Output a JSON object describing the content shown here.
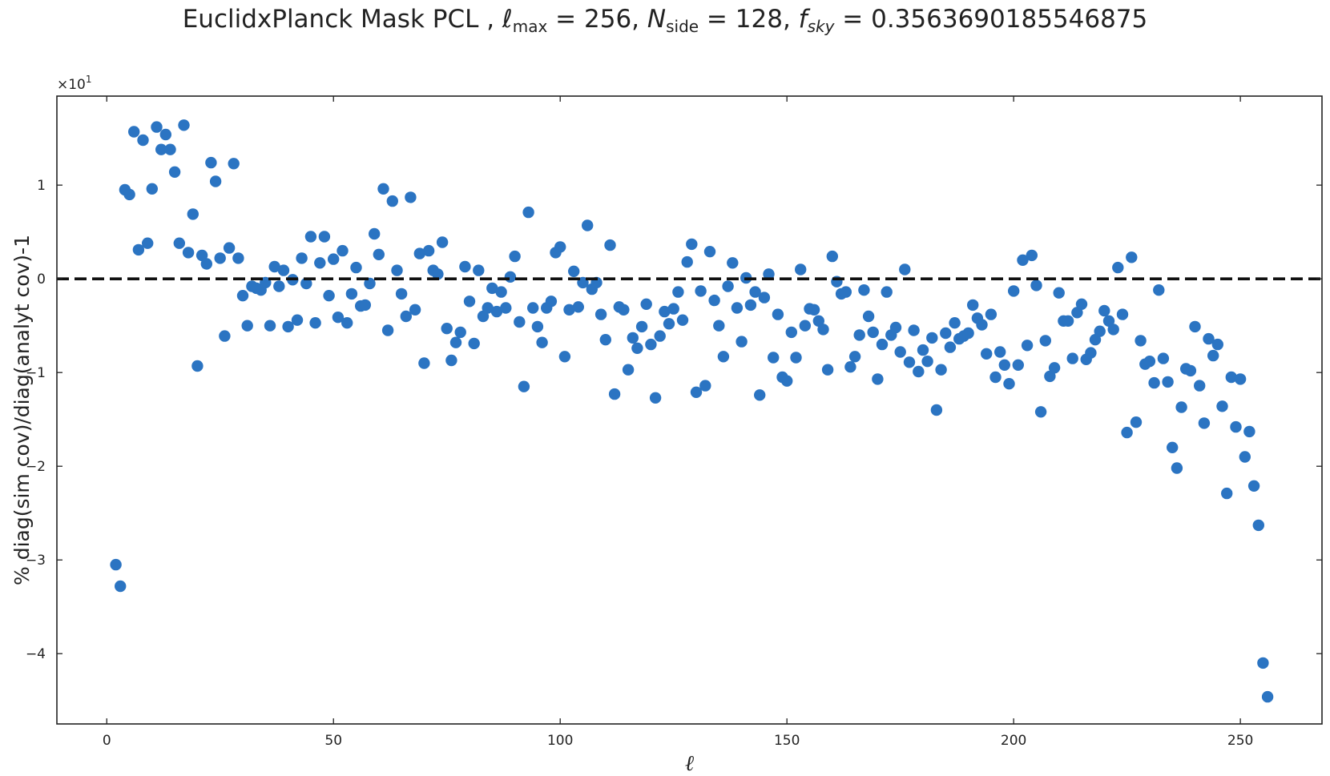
{
  "chart_data": {
    "type": "scatter",
    "title": {
      "mask": "EuclidxPlanck Mask PCL",
      "lmax": "256",
      "nside": "128",
      "fsky": "0.3563690185546875"
    },
    "xlabel": "ℓ",
    "ylabel": "% diag(sim cov)/diag(analyt cov)-1",
    "offset_text": "×10",
    "offset_exponent": "1",
    "xlim": [
      -11,
      268
    ],
    "ylim": [
      -4.75,
      1.95
    ],
    "x_ticks": [
      0,
      50,
      100,
      150,
      200,
      250
    ],
    "x_tick_labels": [
      "0",
      "50",
      "100",
      "150",
      "200",
      "250"
    ],
    "y_ticks": [
      1,
      0,
      -1,
      -2,
      -3,
      -4
    ],
    "y_tick_labels": [
      "1",
      "0",
      "−1",
      "−2",
      "−3",
      "−4"
    ],
    "reference_line": {
      "y": 0,
      "style": "dashed",
      "color": "#111111"
    },
    "marker_color": "#2b74c2",
    "grid": false,
    "points": [
      [
        2,
        -3.05
      ],
      [
        3,
        -3.28
      ],
      [
        4,
        0.95
      ],
      [
        5,
        0.9
      ],
      [
        6,
        1.57
      ],
      [
        7,
        0.31
      ],
      [
        8,
        1.48
      ],
      [
        9,
        0.38
      ],
      [
        10,
        0.96
      ],
      [
        11,
        1.62
      ],
      [
        12,
        1.38
      ],
      [
        13,
        1.54
      ],
      [
        14,
        1.38
      ],
      [
        15,
        1.14
      ],
      [
        16,
        0.38
      ],
      [
        17,
        1.64
      ],
      [
        18,
        0.28
      ],
      [
        19,
        0.69
      ],
      [
        20,
        -0.93
      ],
      [
        21,
        0.25
      ],
      [
        22,
        0.16
      ],
      [
        23,
        1.24
      ],
      [
        24,
        1.04
      ],
      [
        25,
        0.22
      ],
      [
        26,
        -0.61
      ],
      [
        27,
        0.33
      ],
      [
        28,
        1.23
      ],
      [
        29,
        0.22
      ],
      [
        30,
        -0.18
      ],
      [
        31,
        -0.5
      ],
      [
        32,
        -0.08
      ],
      [
        33,
        -0.1
      ],
      [
        34,
        -0.12
      ],
      [
        35,
        -0.04
      ],
      [
        36,
        -0.5
      ],
      [
        37,
        0.13
      ],
      [
        38,
        -0.08
      ],
      [
        39,
        0.09
      ],
      [
        40,
        -0.51
      ],
      [
        41,
        -0.01
      ],
      [
        42,
        -0.44
      ],
      [
        43,
        0.22
      ],
      [
        44,
        -0.05
      ],
      [
        45,
        0.45
      ],
      [
        46,
        -0.47
      ],
      [
        47,
        0.17
      ],
      [
        48,
        0.45
      ],
      [
        49,
        -0.18
      ],
      [
        50,
        0.21
      ],
      [
        51,
        -0.41
      ],
      [
        52,
        0.3
      ],
      [
        53,
        -0.47
      ],
      [
        54,
        -0.16
      ],
      [
        55,
        0.12
      ],
      [
        56,
        -0.29
      ],
      [
        57,
        -0.28
      ],
      [
        58,
        -0.05
      ],
      [
        59,
        0.48
      ],
      [
        60,
        0.26
      ],
      [
        61,
        0.96
      ],
      [
        62,
        -0.55
      ],
      [
        63,
        0.83
      ],
      [
        64,
        0.09
      ],
      [
        65,
        -0.16
      ],
      [
        66,
        -0.4
      ],
      [
        67,
        0.87
      ],
      [
        68,
        -0.33
      ],
      [
        69,
        0.27
      ],
      [
        70,
        -0.9
      ],
      [
        71,
        0.3
      ],
      [
        72,
        0.09
      ],
      [
        73,
        0.05
      ],
      [
        74,
        0.39
      ],
      [
        75,
        -0.53
      ],
      [
        76,
        -0.87
      ],
      [
        77,
        -0.68
      ],
      [
        78,
        -0.57
      ],
      [
        79,
        0.13
      ],
      [
        80,
        -0.24
      ],
      [
        81,
        -0.69
      ],
      [
        82,
        0.09
      ],
      [
        83,
        -0.4
      ],
      [
        84,
        -0.31
      ],
      [
        85,
        -0.1
      ],
      [
        86,
        -0.35
      ],
      [
        87,
        -0.14
      ],
      [
        88,
        -0.31
      ],
      [
        89,
        0.02
      ],
      [
        90,
        0.24
      ],
      [
        91,
        -0.46
      ],
      [
        92,
        -1.15
      ],
      [
        93,
        0.71
      ],
      [
        94,
        -0.31
      ],
      [
        95,
        -0.51
      ],
      [
        96,
        -0.68
      ],
      [
        97,
        -0.31
      ],
      [
        98,
        -0.24
      ],
      [
        99,
        0.28
      ],
      [
        100,
        0.34
      ],
      [
        101,
        -0.83
      ],
      [
        102,
        -0.33
      ],
      [
        103,
        0.08
      ],
      [
        104,
        -0.3
      ],
      [
        105,
        -0.04
      ],
      [
        106,
        0.57
      ],
      [
        107,
        -0.11
      ],
      [
        108,
        -0.04
      ],
      [
        109,
        -0.38
      ],
      [
        110,
        -0.65
      ],
      [
        111,
        0.36
      ],
      [
        112,
        -1.23
      ],
      [
        113,
        -0.3
      ],
      [
        114,
        -0.33
      ],
      [
        115,
        -0.97
      ],
      [
        116,
        -0.63
      ],
      [
        117,
        -0.74
      ],
      [
        118,
        -0.51
      ],
      [
        119,
        -0.27
      ],
      [
        120,
        -0.7
      ],
      [
        121,
        -1.27
      ],
      [
        122,
        -0.61
      ],
      [
        123,
        -0.35
      ],
      [
        124,
        -0.48
      ],
      [
        125,
        -0.32
      ],
      [
        126,
        -0.14
      ],
      [
        127,
        -0.44
      ],
      [
        128,
        0.18
      ],
      [
        129,
        0.37
      ],
      [
        130,
        -1.21
      ],
      [
        131,
        -0.13
      ],
      [
        132,
        -1.14
      ],
      [
        133,
        0.29
      ],
      [
        134,
        -0.23
      ],
      [
        135,
        -0.5
      ],
      [
        136,
        -0.83
      ],
      [
        137,
        -0.08
      ],
      [
        138,
        0.17
      ],
      [
        139,
        -0.31
      ],
      [
        140,
        -0.67
      ],
      [
        141,
        0.01
      ],
      [
        142,
        -0.28
      ],
      [
        143,
        -0.14
      ],
      [
        144,
        -1.24
      ],
      [
        145,
        -0.2
      ],
      [
        146,
        0.05
      ],
      [
        147,
        -0.84
      ],
      [
        148,
        -0.38
      ],
      [
        149,
        -1.05
      ],
      [
        150,
        -1.09
      ],
      [
        151,
        -0.57
      ],
      [
        152,
        -0.84
      ],
      [
        153,
        0.1
      ],
      [
        154,
        -0.5
      ],
      [
        155,
        -0.32
      ],
      [
        156,
        -0.33
      ],
      [
        157,
        -0.45
      ],
      [
        158,
        -0.54
      ],
      [
        159,
        -0.97
      ],
      [
        160,
        0.24
      ],
      [
        161,
        -0.03
      ],
      [
        162,
        -0.16
      ],
      [
        163,
        -0.14
      ],
      [
        164,
        -0.94
      ],
      [
        165,
        -0.83
      ],
      [
        166,
        -0.6
      ],
      [
        167,
        -0.12
      ],
      [
        168,
        -0.4
      ],
      [
        169,
        -0.57
      ],
      [
        170,
        -1.07
      ],
      [
        171,
        -0.7
      ],
      [
        172,
        -0.14
      ],
      [
        173,
        -0.6
      ],
      [
        174,
        -0.52
      ],
      [
        175,
        -0.78
      ],
      [
        176,
        0.1
      ],
      [
        177,
        -0.89
      ],
      [
        178,
        -0.55
      ],
      [
        179,
        -0.99
      ],
      [
        180,
        -0.76
      ],
      [
        181,
        -0.88
      ],
      [
        182,
        -0.63
      ],
      [
        183,
        -1.4
      ],
      [
        184,
        -0.97
      ],
      [
        185,
        -0.58
      ],
      [
        186,
        -0.73
      ],
      [
        187,
        -0.47
      ],
      [
        188,
        -0.64
      ],
      [
        189,
        -0.61
      ],
      [
        190,
        -0.58
      ],
      [
        191,
        -0.28
      ],
      [
        192,
        -0.42
      ],
      [
        193,
        -0.49
      ],
      [
        194,
        -0.8
      ],
      [
        195,
        -0.38
      ],
      [
        196,
        -1.05
      ],
      [
        197,
        -0.78
      ],
      [
        198,
        -0.92
      ],
      [
        199,
        -1.12
      ],
      [
        200,
        -0.13
      ],
      [
        201,
        -0.92
      ],
      [
        202,
        0.2
      ],
      [
        203,
        -0.71
      ],
      [
        204,
        0.25
      ],
      [
        205,
        -0.07
      ],
      [
        206,
        -1.42
      ],
      [
        207,
        -0.66
      ],
      [
        208,
        -1.04
      ],
      [
        209,
        -0.95
      ],
      [
        210,
        -0.15
      ],
      [
        211,
        -0.45
      ],
      [
        212,
        -0.45
      ],
      [
        213,
        -0.85
      ],
      [
        214,
        -0.36
      ],
      [
        215,
        -0.27
      ],
      [
        216,
        -0.86
      ],
      [
        217,
        -0.79
      ],
      [
        218,
        -0.65
      ],
      [
        219,
        -0.56
      ],
      [
        220,
        -0.34
      ],
      [
        221,
        -0.45
      ],
      [
        222,
        -0.54
      ],
      [
        223,
        0.12
      ],
      [
        224,
        -0.38
      ],
      [
        225,
        -1.64
      ],
      [
        226,
        0.23
      ],
      [
        227,
        -1.53
      ],
      [
        228,
        -0.66
      ],
      [
        229,
        -0.91
      ],
      [
        230,
        -0.88
      ],
      [
        231,
        -1.11
      ],
      [
        232,
        -0.12
      ],
      [
        233,
        -0.85
      ],
      [
        234,
        -1.1
      ],
      [
        235,
        -1.8
      ],
      [
        236,
        -2.02
      ],
      [
        237,
        -1.37
      ],
      [
        238,
        -0.96
      ],
      [
        239,
        -0.98
      ],
      [
        240,
        -0.51
      ],
      [
        241,
        -1.14
      ],
      [
        242,
        -1.54
      ],
      [
        243,
        -0.64
      ],
      [
        244,
        -0.82
      ],
      [
        245,
        -0.7
      ],
      [
        246,
        -1.36
      ],
      [
        247,
        -2.29
      ],
      [
        248,
        -1.05
      ],
      [
        249,
        -1.58
      ],
      [
        250,
        -1.07
      ],
      [
        251,
        -1.9
      ],
      [
        252,
        -1.63
      ],
      [
        253,
        -2.21
      ],
      [
        254,
        -2.63
      ],
      [
        255,
        -4.1
      ],
      [
        256,
        -4.46
      ]
    ]
  }
}
